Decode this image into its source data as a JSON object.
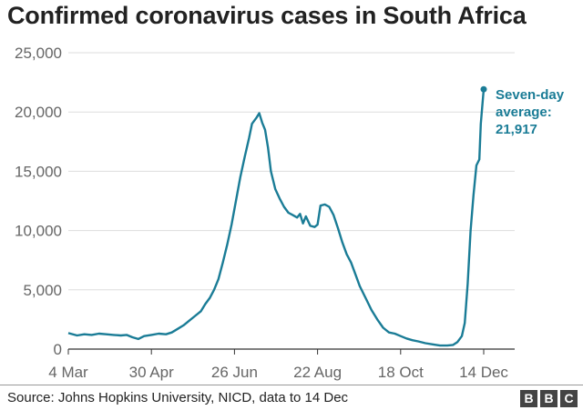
{
  "title": "Confirmed coronavirus cases in South Africa",
  "source": "Source: Johns Hopkins University, NICD, data to 14 Dec",
  "logo": [
    "B",
    "B",
    "C"
  ],
  "colors": {
    "line": "#1a7c96",
    "grid": "#dddddd",
    "axis": "#333333",
    "tick_text": "#666666"
  },
  "chart_data": {
    "type": "line",
    "title": "Confirmed coronavirus cases in South Africa",
    "xlabel": "",
    "ylabel": "",
    "ylim": [
      0,
      25000
    ],
    "yticks": [
      0,
      5000,
      10000,
      15000,
      20000,
      25000
    ],
    "ytick_labels": [
      "0",
      "5,000",
      "10,000",
      "15,000",
      "20,000",
      "25,000"
    ],
    "xlim": [
      "2020-03-04",
      "2020-12-14"
    ],
    "xticks": [
      "2020-03-04",
      "2020-04-30",
      "2020-06-26",
      "2020-08-22",
      "2020-10-18",
      "2020-12-14"
    ],
    "xtick_labels": [
      "4 Mar",
      "30 Apr",
      "26 Jun",
      "22 Aug",
      "18 Oct",
      "14 Dec"
    ],
    "grid": true,
    "annotation": {
      "lines": [
        "Seven-day",
        "average:",
        "21,917"
      ],
      "x": "2020-12-14",
      "y": 21917
    },
    "series": [
      {
        "points": [
          [
            "2020-03-04",
            1350
          ],
          [
            "2020-03-10",
            1150
          ],
          [
            "2020-03-15",
            1250
          ],
          [
            "2020-03-20",
            1200
          ],
          [
            "2020-03-25",
            1300
          ],
          [
            "2020-03-30",
            1250
          ],
          [
            "2020-04-04",
            1200
          ],
          [
            "2020-04-09",
            1150
          ],
          [
            "2020-04-13",
            1200
          ],
          [
            "2020-04-17",
            1000
          ],
          [
            "2020-04-21",
            850
          ],
          [
            "2020-04-25",
            1100
          ],
          [
            "2020-04-30",
            1200
          ],
          [
            "2020-05-05",
            1300
          ],
          [
            "2020-05-10",
            1250
          ],
          [
            "2020-05-14",
            1400
          ],
          [
            "2020-05-18",
            1700
          ],
          [
            "2020-05-22",
            2000
          ],
          [
            "2020-05-26",
            2400
          ],
          [
            "2020-05-30",
            2800
          ],
          [
            "2020-06-03",
            3200
          ],
          [
            "2020-06-06",
            3800
          ],
          [
            "2020-06-09",
            4300
          ],
          [
            "2020-06-12",
            5000
          ],
          [
            "2020-06-15",
            5900
          ],
          [
            "2020-06-18",
            7300
          ],
          [
            "2020-06-21",
            8800
          ],
          [
            "2020-06-24",
            10500
          ],
          [
            "2020-06-27",
            12500
          ],
          [
            "2020-06-30",
            14500
          ],
          [
            "2020-07-03",
            16200
          ],
          [
            "2020-07-06",
            17800
          ],
          [
            "2020-07-08",
            19000
          ],
          [
            "2020-07-11",
            19500
          ],
          [
            "2020-07-13",
            19900
          ],
          [
            "2020-07-15",
            19100
          ],
          [
            "2020-07-17",
            18500
          ],
          [
            "2020-07-19",
            17000
          ],
          [
            "2020-07-21",
            15000
          ],
          [
            "2020-07-24",
            13500
          ],
          [
            "2020-07-27",
            12700
          ],
          [
            "2020-07-30",
            12000
          ],
          [
            "2020-08-02",
            11500
          ],
          [
            "2020-08-05",
            11300
          ],
          [
            "2020-08-08",
            11100
          ],
          [
            "2020-08-10",
            11400
          ],
          [
            "2020-08-12",
            10600
          ],
          [
            "2020-08-14",
            11200
          ],
          [
            "2020-08-17",
            10400
          ],
          [
            "2020-08-20",
            10300
          ],
          [
            "2020-08-22",
            10500
          ],
          [
            "2020-08-24",
            12100
          ],
          [
            "2020-08-27",
            12200
          ],
          [
            "2020-08-30",
            12000
          ],
          [
            "2020-09-02",
            11300
          ],
          [
            "2020-09-05",
            10200
          ],
          [
            "2020-09-08",
            9000
          ],
          [
            "2020-09-11",
            8000
          ],
          [
            "2020-09-14",
            7300
          ],
          [
            "2020-09-17",
            6300
          ],
          [
            "2020-09-20",
            5300
          ],
          [
            "2020-09-24",
            4300
          ],
          [
            "2020-09-28",
            3300
          ],
          [
            "2020-10-02",
            2500
          ],
          [
            "2020-10-06",
            1800
          ],
          [
            "2020-10-10",
            1400
          ],
          [
            "2020-10-14",
            1300
          ],
          [
            "2020-10-18",
            1100
          ],
          [
            "2020-10-22",
            900
          ],
          [
            "2020-10-26",
            750
          ],
          [
            "2020-10-30",
            650
          ],
          [
            "2020-11-04",
            500
          ],
          [
            "2020-11-09",
            400
          ],
          [
            "2020-11-14",
            300
          ],
          [
            "2020-11-19",
            300
          ],
          [
            "2020-11-23",
            350
          ],
          [
            "2020-11-26",
            600
          ],
          [
            "2020-11-29",
            1100
          ],
          [
            "2020-12-01",
            2200
          ],
          [
            "2020-12-03",
            5500
          ],
          [
            "2020-12-05",
            10000
          ],
          [
            "2020-12-07",
            13000
          ],
          [
            "2020-12-09",
            15500
          ],
          [
            "2020-12-11",
            16000
          ],
          [
            "2020-12-12",
            19000
          ],
          [
            "2020-12-14",
            21917
          ]
        ]
      }
    ]
  }
}
